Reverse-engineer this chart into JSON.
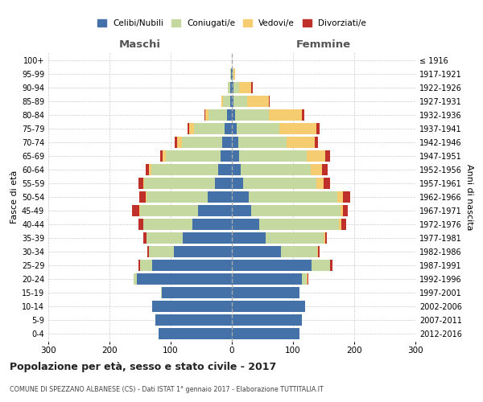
{
  "age_groups": [
    "0-4",
    "5-9",
    "10-14",
    "15-19",
    "20-24",
    "25-29",
    "30-34",
    "35-39",
    "40-44",
    "45-49",
    "50-54",
    "55-59",
    "60-64",
    "65-69",
    "70-74",
    "75-79",
    "80-84",
    "85-89",
    "90-94",
    "95-99",
    "100+"
  ],
  "birth_years": [
    "2012-2016",
    "2007-2011",
    "2002-2006",
    "1997-2001",
    "1992-1996",
    "1987-1991",
    "1982-1986",
    "1977-1981",
    "1972-1976",
    "1967-1971",
    "1962-1966",
    "1957-1961",
    "1952-1956",
    "1947-1951",
    "1942-1946",
    "1937-1941",
    "1932-1936",
    "1927-1931",
    "1922-1926",
    "1917-1921",
    "≤ 1916"
  ],
  "maschi": {
    "celibi": [
      120,
      125,
      130,
      115,
      155,
      130,
      95,
      80,
      65,
      55,
      40,
      28,
      22,
      18,
      16,
      12,
      8,
      3,
      2,
      1,
      0
    ],
    "coniugati": [
      0,
      0,
      0,
      1,
      5,
      20,
      40,
      60,
      80,
      95,
      100,
      115,
      110,
      90,
      65,
      50,
      30,
      12,
      4,
      1,
      0
    ],
    "vedovi": [
      0,
      0,
      0,
      0,
      1,
      0,
      0,
      0,
      0,
      1,
      1,
      2,
      4,
      5,
      8,
      8,
      5,
      2,
      1,
      0,
      0
    ],
    "divorziati": [
      0,
      0,
      0,
      0,
      0,
      2,
      3,
      5,
      8,
      12,
      10,
      8,
      5,
      4,
      5,
      2,
      2,
      0,
      0,
      0,
      0
    ]
  },
  "femmine": {
    "nubili": [
      110,
      115,
      120,
      110,
      115,
      130,
      80,
      55,
      45,
      32,
      28,
      18,
      14,
      12,
      10,
      8,
      5,
      3,
      2,
      1,
      0
    ],
    "coniugate": [
      0,
      0,
      0,
      1,
      8,
      30,
      60,
      95,
      130,
      145,
      145,
      120,
      115,
      110,
      80,
      70,
      55,
      22,
      10,
      2,
      0
    ],
    "vedove": [
      0,
      0,
      0,
      0,
      1,
      1,
      1,
      2,
      4,
      4,
      8,
      12,
      18,
      30,
      45,
      60,
      55,
      35,
      20,
      2,
      0
    ],
    "divorziate": [
      0,
      0,
      0,
      0,
      1,
      3,
      3,
      3,
      8,
      8,
      12,
      10,
      10,
      8,
      6,
      5,
      4,
      2,
      2,
      0,
      0
    ]
  },
  "colors": {
    "celibi": "#4472a8",
    "coniugati": "#c5d8a0",
    "vedovi": "#f5cc70",
    "divorziati": "#c0302a"
  },
  "title": "Popolazione per età, sesso e stato civile - 2017",
  "subtitle": "COMUNE DI SPEZZANO ALBANESE (CS) - Dati ISTAT 1° gennaio 2017 - Elaborazione TUTTITALIA.IT",
  "xlabel_left": "Maschi",
  "xlabel_right": "Femmine",
  "ylabel_left": "Fasce di età",
  "ylabel_right": "Anni di nascita",
  "xlim": 300,
  "background_color": "#ffffff",
  "grid_color": "#cccccc",
  "legend_labels": [
    "Celibi/Nubili",
    "Coniugati/e",
    "Vedovi/e",
    "Divorziati/e"
  ]
}
